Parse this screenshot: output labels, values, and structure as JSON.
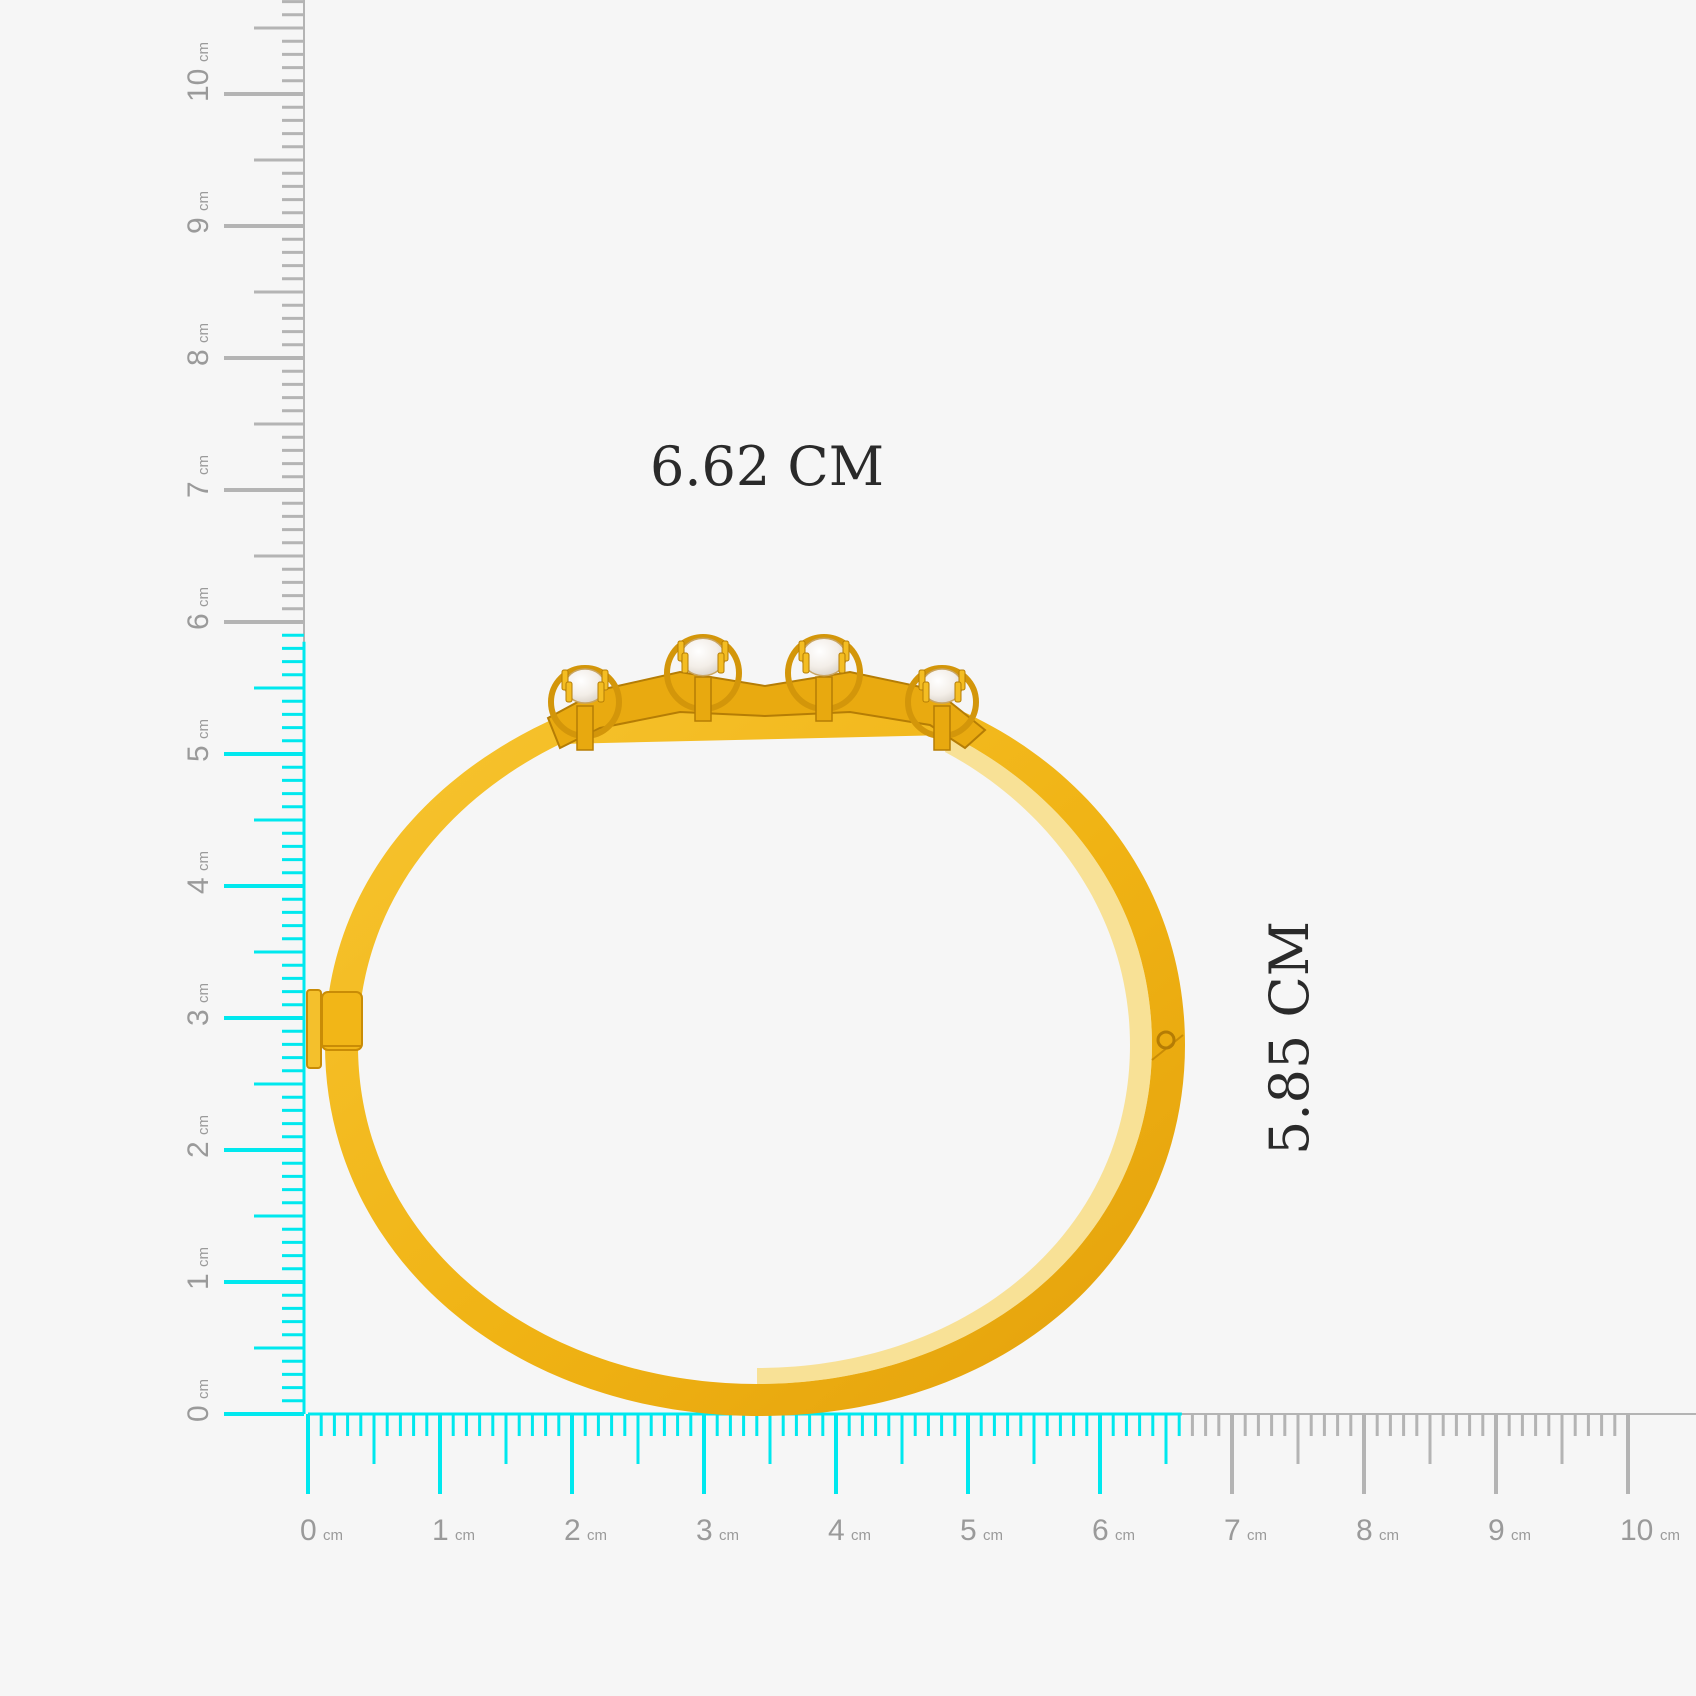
{
  "dimensions": {
    "width_label": "6.62 CM",
    "height_label": "5.85 CM",
    "width_cm": 6.62,
    "height_cm": 5.85
  },
  "rulers": {
    "unit": "cm",
    "horizontal_numbers": [
      "0",
      "1",
      "2",
      "3",
      "4",
      "5",
      "6",
      "7",
      "8",
      "9",
      "10"
    ],
    "vertical_numbers": [
      "0",
      "1",
      "2",
      "3",
      "4",
      "5",
      "6",
      "7",
      "8",
      "9",
      "10"
    ],
    "max_cm": 10
  },
  "colors": {
    "background": "#f6f6f6",
    "ruler_highlight": "#00e8ee",
    "ruler_tick": "#b4b4b4",
    "ruler_text": "#9a9a9a",
    "gold": "#f2b617",
    "gold_dark": "#d99a08",
    "pearl": "#f3eee8"
  },
  "product": {
    "type": "gold-bangle-bracelet",
    "stones": 4
  }
}
